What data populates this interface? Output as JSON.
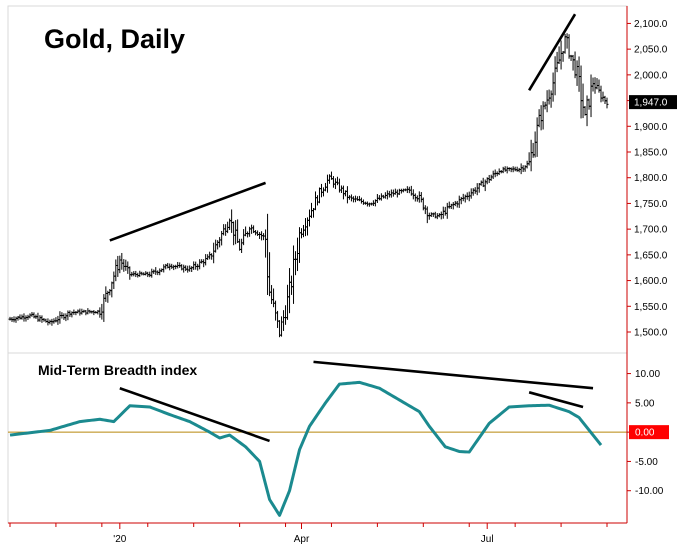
{
  "chart_data": [
    {
      "type": "bar",
      "title": "Gold, Daily",
      "style": "ohlc",
      "ylim": [
        1465,
        2130
      ],
      "yticks": [
        "2,100.0",
        "2,050.0",
        "2,000.0",
        "1,950.0",
        "1,900.0",
        "1,850.0",
        "1,800.0",
        "1,750.0",
        "1,700.0",
        "1,650.0",
        "1,600.0",
        "1,550.0",
        "1,500.0"
      ],
      "ytick_values": [
        2100,
        2050,
        2000,
        1950,
        1900,
        1850,
        1800,
        1750,
        1700,
        1650,
        1600,
        1550,
        1500
      ],
      "last_price_label": "1,947.0",
      "last_price": 1947,
      "xticks": [
        "'20",
        "Apr",
        "Jul"
      ],
      "xtick_index": [
        55,
        146,
        239
      ],
      "bar_count": 300,
      "keypoints": [
        [
          0,
          1525
        ],
        [
          10,
          1532
        ],
        [
          20,
          1518
        ],
        [
          30,
          1538
        ],
        [
          45,
          1540
        ],
        [
          55,
          1640
        ],
        [
          60,
          1612
        ],
        [
          70,
          1612
        ],
        [
          80,
          1630
        ],
        [
          90,
          1622
        ],
        [
          100,
          1645
        ],
        [
          110,
          1720
        ],
        [
          115,
          1662
        ],
        [
          120,
          1705
        ],
        [
          128,
          1682
        ],
        [
          130,
          1580
        ],
        [
          135,
          1495
        ],
        [
          140,
          1578
        ],
        [
          145,
          1690
        ],
        [
          155,
          1770
        ],
        [
          160,
          1800
        ],
        [
          170,
          1760
        ],
        [
          180,
          1750
        ],
        [
          190,
          1768
        ],
        [
          200,
          1776
        ],
        [
          205,
          1760
        ],
        [
          210,
          1728
        ],
        [
          215,
          1725
        ],
        [
          220,
          1742
        ],
        [
          228,
          1763
        ],
        [
          235,
          1783
        ],
        [
          245,
          1814
        ],
        [
          255,
          1817
        ],
        [
          260,
          1828
        ],
        [
          265,
          1910
        ],
        [
          272,
          1985
        ],
        [
          278,
          2072
        ],
        [
          284,
          2000
        ],
        [
          288,
          1920
        ],
        [
          292,
          1985
        ],
        [
          296,
          1960
        ],
        [
          299,
          1947
        ]
      ],
      "trendlines": [
        [
          [
            50,
            1678
          ],
          [
            128,
            1790
          ]
        ],
        [
          [
            260,
            1970
          ],
          [
            283,
            2118
          ]
        ]
      ],
      "colors": {
        "bars": "#000000",
        "axis": "#cc0000",
        "trendline": "#000000"
      }
    },
    {
      "type": "line",
      "title": "Mid-Term Breadth index",
      "ylim": [
        -15,
        13
      ],
      "yticks": [
        "10.00",
        "5.00",
        "0.00",
        "-5.00",
        "-10.00"
      ],
      "ytick_values": [
        10,
        5,
        0,
        -5,
        -10
      ],
      "current_value_label": "0.00",
      "baseline": 0,
      "keypoints": [
        [
          0,
          -0.5
        ],
        [
          20,
          0.3
        ],
        [
          35,
          1.8
        ],
        [
          45,
          2.2
        ],
        [
          52,
          1.8
        ],
        [
          60,
          4.5
        ],
        [
          70,
          4.3
        ],
        [
          80,
          3.0
        ],
        [
          90,
          1.8
        ],
        [
          100,
          0
        ],
        [
          105,
          -1.0
        ],
        [
          110,
          -0.5
        ],
        [
          118,
          -2.5
        ],
        [
          125,
          -5
        ],
        [
          130,
          -11.5
        ],
        [
          135,
          -14.2
        ],
        [
          140,
          -10
        ],
        [
          145,
          -3
        ],
        [
          150,
          1
        ],
        [
          158,
          5
        ],
        [
          165,
          8.2
        ],
        [
          175,
          8.5
        ],
        [
          185,
          7.5
        ],
        [
          195,
          5.5
        ],
        [
          205,
          3.5
        ],
        [
          210,
          1
        ],
        [
          218,
          -2.5
        ],
        [
          225,
          -3.3
        ],
        [
          230,
          -3.4
        ],
        [
          240,
          1.5
        ],
        [
          250,
          4.3
        ],
        [
          260,
          4.5
        ],
        [
          270,
          4.6
        ],
        [
          280,
          3.5
        ],
        [
          285,
          2.5
        ],
        [
          292,
          -0.5
        ],
        [
          296,
          -2.2
        ]
      ],
      "trendlines": [
        [
          [
            55,
            7.5
          ],
          [
            130,
            -1.5
          ]
        ],
        [
          [
            152,
            12
          ],
          [
            292,
            7.5
          ]
        ],
        [
          [
            260,
            6.8
          ],
          [
            287,
            4.3
          ]
        ]
      ],
      "colors": {
        "line": "#1b8a8f",
        "baseline": "#b8860b",
        "axis": "#cc0000",
        "trendline": "#000000"
      }
    }
  ]
}
